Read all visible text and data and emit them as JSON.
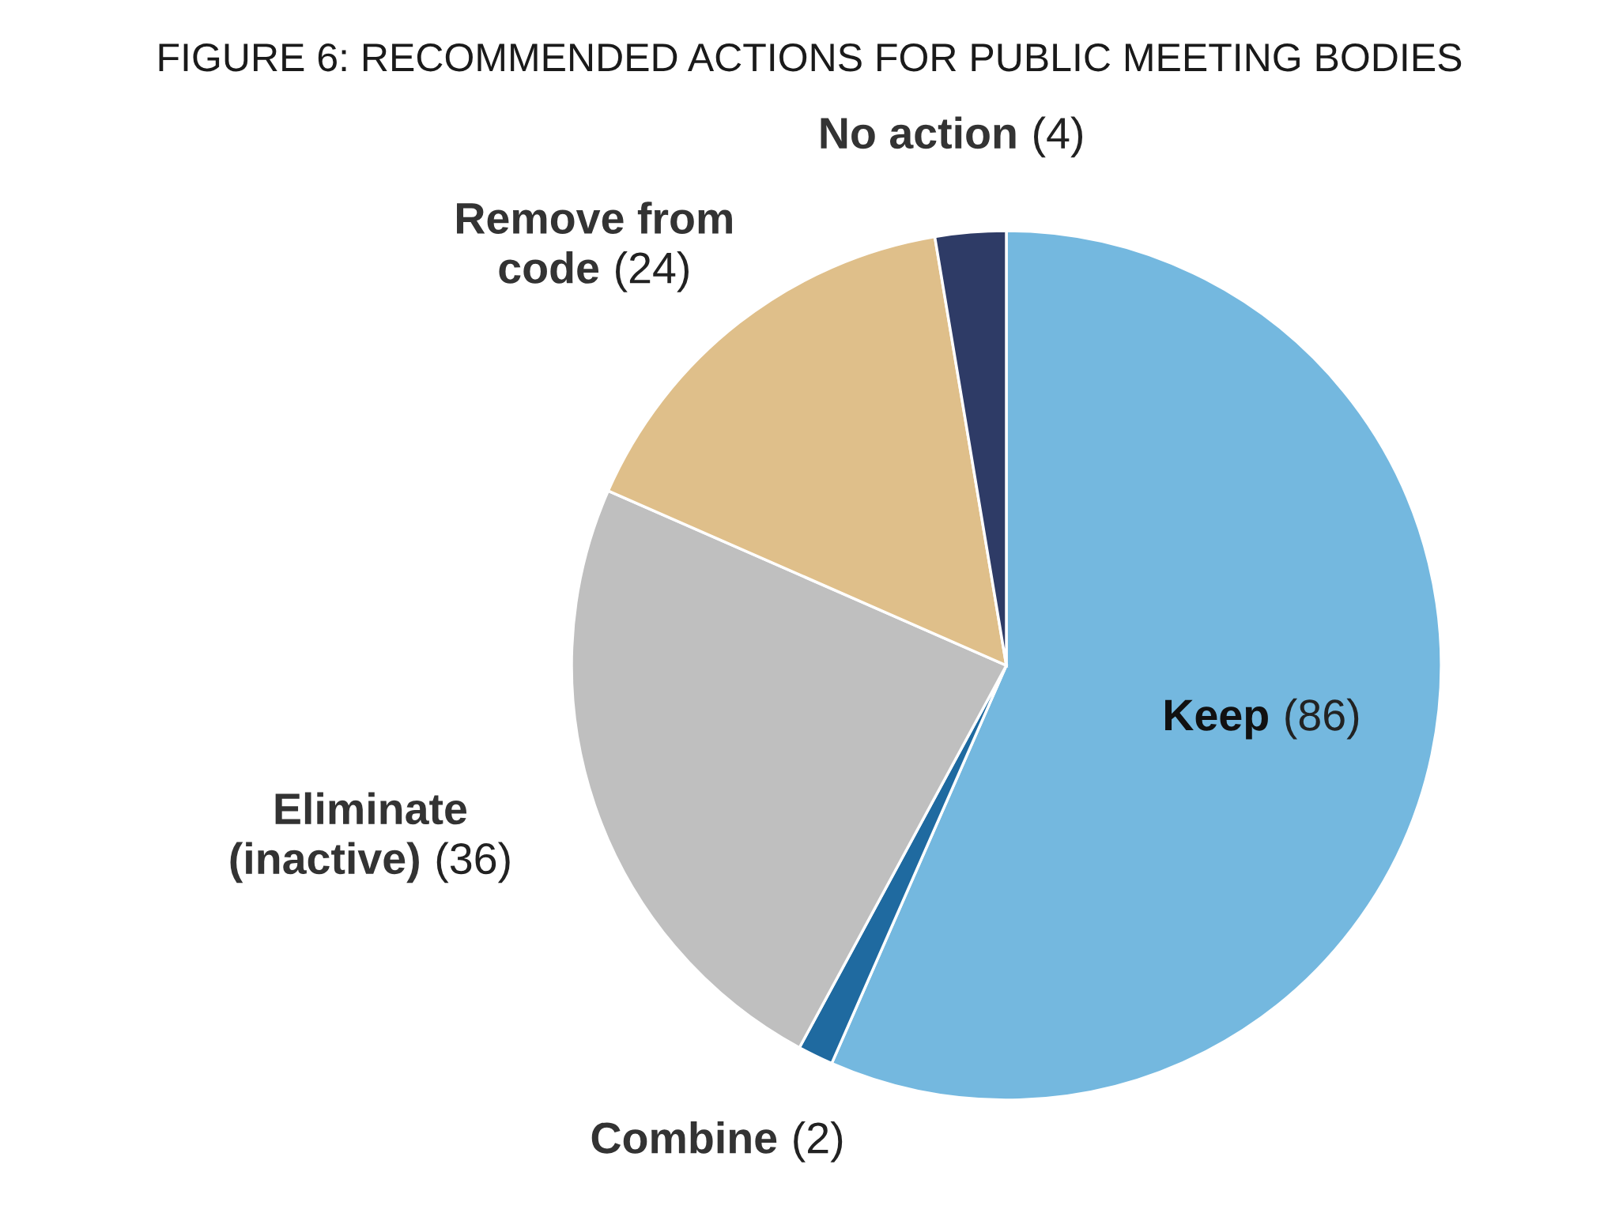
{
  "chart_data": {
    "type": "pie",
    "title": "FIGURE 6: RECOMMENDED ACTIONS FOR PUBLIC MEETING BODIES",
    "categories": [
      "Keep",
      "Combine",
      "Eliminate\n(inactive)",
      "Remove from\ncode",
      "No action"
    ],
    "values": [
      86,
      2,
      36,
      24,
      4
    ],
    "value_labels": [
      "(86)",
      "(2)",
      "(36)",
      "(24)",
      "(4)"
    ],
    "colors": [
      "#74b8df",
      "#1f6aa0",
      "#bfbfbf",
      "#dfbf8a",
      "#2e3b66"
    ],
    "legend": false
  }
}
